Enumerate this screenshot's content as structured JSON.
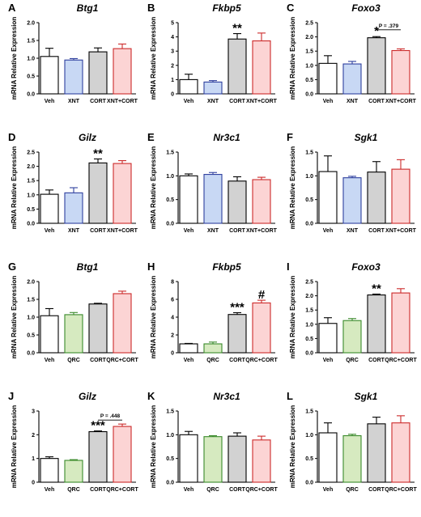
{
  "colors": {
    "veh_fill": "#ffffff",
    "veh_stroke": "#000000",
    "xnt_fill": "#c8d8f4",
    "xnt_stroke": "#2e3f9e",
    "cort_fill": "#d2d2d2",
    "cort_stroke": "#000000",
    "xntcort_fill": "#fcd4d4",
    "xntcort_stroke": "#cc2a2a",
    "qrc_fill": "#d6eac0",
    "qrc_stroke": "#3a8a2a",
    "qrccort_fill": "#fcd4d4",
    "qrccort_stroke": "#cc2a2a"
  },
  "chart_data": [
    {
      "type": "bar",
      "panel": "A",
      "title": "Btg1",
      "ylabel": "mRNA Relative Expression",
      "categories": [
        "Veh",
        "XNT",
        "CORT",
        "XNT+CORT"
      ],
      "values": [
        1.05,
        0.95,
        1.18,
        1.27
      ],
      "errors": [
        0.23,
        0.04,
        0.11,
        0.13
      ],
      "ylim": [
        0,
        2.0
      ],
      "yticks": [
        "0.0",
        "0.5",
        "1.0",
        "1.5",
        "2.0"
      ],
      "ytick_values": [
        0,
        0.5,
        1.0,
        1.5,
        2.0
      ],
      "fills": [
        "veh_fill",
        "xnt_fill",
        "cort_fill",
        "xntcort_fill"
      ],
      "strokes": [
        "veh_stroke",
        "xnt_stroke",
        "cort_stroke",
        "xntcort_stroke"
      ],
      "annotations": []
    },
    {
      "type": "bar",
      "panel": "B",
      "title": "Fkbp5",
      "ylabel": "mRNA Relative Expression",
      "categories": [
        "Veh",
        "XNT",
        "CORT",
        "XNT+CORT"
      ],
      "values": [
        1.0,
        0.83,
        3.85,
        3.72
      ],
      "errors": [
        0.38,
        0.1,
        0.38,
        0.55
      ],
      "ylim": [
        0,
        5
      ],
      "yticks": [
        "0",
        "1",
        "2",
        "3",
        "4",
        "5"
      ],
      "ytick_values": [
        0,
        1,
        2,
        3,
        4,
        5
      ],
      "fills": [
        "veh_fill",
        "xnt_fill",
        "cort_fill",
        "xntcort_fill"
      ],
      "strokes": [
        "veh_stroke",
        "xnt_stroke",
        "cort_stroke",
        "xntcort_stroke"
      ],
      "annotations": [
        {
          "bar": 2,
          "text": "**"
        }
      ]
    },
    {
      "type": "bar",
      "panel": "C",
      "title": "Foxo3",
      "ylabel": "mRNA Relative Expression",
      "categories": [
        "Veh",
        "XNT",
        "CORT",
        "XNT+CORT"
      ],
      "values": [
        1.07,
        1.05,
        1.97,
        1.52
      ],
      "errors": [
        0.27,
        0.09,
        0.04,
        0.06
      ],
      "ylim": [
        0,
        2.5
      ],
      "yticks": [
        "0.0",
        "0.5",
        "1.0",
        "1.5",
        "2.0",
        "2.5"
      ],
      "ytick_values": [
        0,
        0.5,
        1.0,
        1.5,
        2.0,
        2.5
      ],
      "fills": [
        "veh_fill",
        "xnt_fill",
        "cort_fill",
        "xntcort_fill"
      ],
      "strokes": [
        "veh_stroke",
        "xnt_stroke",
        "cort_stroke",
        "xntcort_stroke"
      ],
      "annotations": [
        {
          "bar": 2,
          "text": "*"
        }
      ],
      "bracket": {
        "from": 2,
        "to": 3,
        "at": 2.25,
        "text": "P = .379"
      }
    },
    {
      "type": "bar",
      "panel": "D",
      "title": "Gilz",
      "ylabel": "mRNA Relative Expression",
      "categories": [
        "Veh",
        "XNT",
        "CORT",
        "XNT+CORT"
      ],
      "values": [
        1.02,
        1.07,
        2.12,
        2.1
      ],
      "errors": [
        0.15,
        0.18,
        0.14,
        0.1
      ],
      "ylim": [
        0,
        2.5
      ],
      "yticks": [
        "0.0",
        "0.5",
        "1.0",
        "1.5",
        "2.0",
        "2.5"
      ],
      "ytick_values": [
        0,
        0.5,
        1.0,
        1.5,
        2.0,
        2.5
      ],
      "fills": [
        "veh_fill",
        "xnt_fill",
        "cort_fill",
        "xntcort_fill"
      ],
      "strokes": [
        "veh_stroke",
        "xnt_stroke",
        "cort_stroke",
        "xntcort_stroke"
      ],
      "annotations": [
        {
          "bar": 2,
          "text": "**"
        }
      ]
    },
    {
      "type": "bar",
      "panel": "E",
      "title": "Nr3c1",
      "ylabel": "mRNA Relative Expression",
      "categories": [
        "Veh",
        "XNT",
        "CORT",
        "XNT+CORT"
      ],
      "values": [
        1.0,
        1.03,
        0.89,
        0.92
      ],
      "errors": [
        0.04,
        0.04,
        0.09,
        0.05
      ],
      "ylim": [
        0,
        1.5
      ],
      "yticks": [
        "0.0",
        "0.5",
        "1.0",
        "1.5"
      ],
      "ytick_values": [
        0,
        0.5,
        1.0,
        1.5
      ],
      "fills": [
        "veh_fill",
        "xnt_fill",
        "cort_fill",
        "xntcort_fill"
      ],
      "strokes": [
        "veh_stroke",
        "xnt_stroke",
        "cort_stroke",
        "xntcort_stroke"
      ],
      "annotations": []
    },
    {
      "type": "bar",
      "panel": "F",
      "title": "Sgk1",
      "ylabel": "mRNA Relative Expression",
      "categories": [
        "Veh",
        "XNT",
        "CORT",
        "XNT+CORT"
      ],
      "values": [
        1.09,
        0.96,
        1.08,
        1.14
      ],
      "errors": [
        0.33,
        0.03,
        0.22,
        0.2
      ],
      "ylim": [
        0,
        1.5
      ],
      "yticks": [
        "0.0",
        "0.5",
        "1.0",
        "1.5"
      ],
      "ytick_values": [
        0,
        0.5,
        1.0,
        1.5
      ],
      "fills": [
        "veh_fill",
        "xnt_fill",
        "cort_fill",
        "xntcort_fill"
      ],
      "strokes": [
        "veh_stroke",
        "xnt_stroke",
        "cort_stroke",
        "xntcort_stroke"
      ],
      "annotations": []
    },
    {
      "type": "bar",
      "panel": "G",
      "title": "Btg1",
      "ylabel": "mRNA Relative Expression",
      "categories": [
        "Veh",
        "QRC",
        "CORT",
        "QRC+CORT"
      ],
      "values": [
        1.04,
        1.07,
        1.37,
        1.66
      ],
      "errors": [
        0.2,
        0.06,
        0.02,
        0.07
      ],
      "ylim": [
        0,
        2.0
      ],
      "yticks": [
        "0.0",
        "0.5",
        "1.0",
        "1.5",
        "2.0"
      ],
      "ytick_values": [
        0,
        0.5,
        1.0,
        1.5,
        2.0
      ],
      "fills": [
        "veh_fill",
        "qrc_fill",
        "cort_fill",
        "qrccort_fill"
      ],
      "strokes": [
        "veh_stroke",
        "qrc_stroke",
        "cort_stroke",
        "qrccort_stroke"
      ],
      "annotations": []
    },
    {
      "type": "bar",
      "panel": "H",
      "title": "Fkbp5",
      "ylabel": "mRNA Relative Expression",
      "categories": [
        "Veh",
        "QRC",
        "CORT",
        "QRC+CORT"
      ],
      "values": [
        1.0,
        1.0,
        4.3,
        5.6
      ],
      "errors": [
        0.05,
        0.2,
        0.2,
        0.3
      ],
      "ylim": [
        0,
        8
      ],
      "yticks": [
        "0",
        "2",
        "4",
        "6",
        "8"
      ],
      "ytick_values": [
        0,
        2,
        4,
        6,
        8
      ],
      "fills": [
        "veh_fill",
        "qrc_fill",
        "cort_fill",
        "qrccort_fill"
      ],
      "strokes": [
        "veh_stroke",
        "qrc_stroke",
        "cort_stroke",
        "qrccort_stroke"
      ],
      "annotations": [
        {
          "bar": 2,
          "text": "***"
        },
        {
          "bar": 3,
          "text": "#"
        }
      ]
    },
    {
      "type": "bar",
      "panel": "I",
      "title": "Foxo3",
      "ylabel": "mRNA Relative Expression",
      "categories": [
        "Veh",
        "QRC",
        "CORT",
        "QRC+CORT"
      ],
      "values": [
        1.03,
        1.13,
        2.03,
        2.1
      ],
      "errors": [
        0.2,
        0.07,
        0.03,
        0.15
      ],
      "ylim": [
        0,
        2.5
      ],
      "yticks": [
        "0.0",
        "0.5",
        "1.0",
        "1.5",
        "2.0",
        "2.5"
      ],
      "ytick_values": [
        0,
        0.5,
        1.0,
        1.5,
        2.0,
        2.5
      ],
      "fills": [
        "veh_fill",
        "qrc_fill",
        "cort_fill",
        "qrccort_fill"
      ],
      "strokes": [
        "veh_stroke",
        "qrc_stroke",
        "cort_stroke",
        "qrccort_stroke"
      ],
      "annotations": [
        {
          "bar": 2,
          "text": "**"
        }
      ]
    },
    {
      "type": "bar",
      "panel": "J",
      "title": "Gilz",
      "ylabel": "mRNA Relative Expression",
      "categories": [
        "Veh",
        "QRC",
        "CORT",
        "QRC+CORT"
      ],
      "values": [
        1.0,
        0.92,
        2.13,
        2.35
      ],
      "errors": [
        0.07,
        0.03,
        0.03,
        0.1
      ],
      "ylim": [
        0,
        3
      ],
      "yticks": [
        "0",
        "1",
        "2",
        "3"
      ],
      "ytick_values": [
        0,
        1,
        2,
        3
      ],
      "fills": [
        "veh_fill",
        "qrc_fill",
        "cort_fill",
        "qrccort_fill"
      ],
      "strokes": [
        "veh_stroke",
        "qrc_stroke",
        "cort_stroke",
        "qrccort_stroke"
      ],
      "annotations": [
        {
          "bar": 2,
          "text": "***"
        }
      ],
      "bracket": {
        "from": 2,
        "to": 3,
        "at": 2.62,
        "text": "P = .448"
      }
    },
    {
      "type": "bar",
      "panel": "K",
      "title": "Nr3c1",
      "ylabel": "mRNA Relative Expression",
      "categories": [
        "Veh",
        "QRC",
        "CORT",
        "QRC+CORT"
      ],
      "values": [
        1.0,
        0.96,
        0.97,
        0.89
      ],
      "errors": [
        0.07,
        0.02,
        0.07,
        0.08
      ],
      "ylim": [
        0,
        1.5
      ],
      "yticks": [
        "0.0",
        "0.5",
        "1.0",
        "1.5"
      ],
      "ytick_values": [
        0,
        0.5,
        1.0,
        1.5
      ],
      "fills": [
        "veh_fill",
        "qrc_fill",
        "cort_fill",
        "qrccort_fill"
      ],
      "strokes": [
        "veh_stroke",
        "qrc_stroke",
        "cort_stroke",
        "qrccort_stroke"
      ],
      "annotations": []
    },
    {
      "type": "bar",
      "panel": "L",
      "title": "Sgk1",
      "ylabel": "mRNA Relative Expression",
      "categories": [
        "Veh",
        "QRC",
        "CORT",
        "QRC+CORT"
      ],
      "values": [
        1.04,
        0.98,
        1.23,
        1.25
      ],
      "errors": [
        0.21,
        0.03,
        0.14,
        0.15
      ],
      "ylim": [
        0,
        1.5
      ],
      "yticks": [
        "0.0",
        "0.5",
        "1.0",
        "1.5"
      ],
      "ytick_values": [
        0,
        0.5,
        1.0,
        1.5
      ],
      "fills": [
        "veh_fill",
        "qrc_fill",
        "cort_fill",
        "qrccort_fill"
      ],
      "strokes": [
        "veh_stroke",
        "qrc_stroke",
        "cort_stroke",
        "qrccort_stroke"
      ],
      "annotations": []
    }
  ]
}
